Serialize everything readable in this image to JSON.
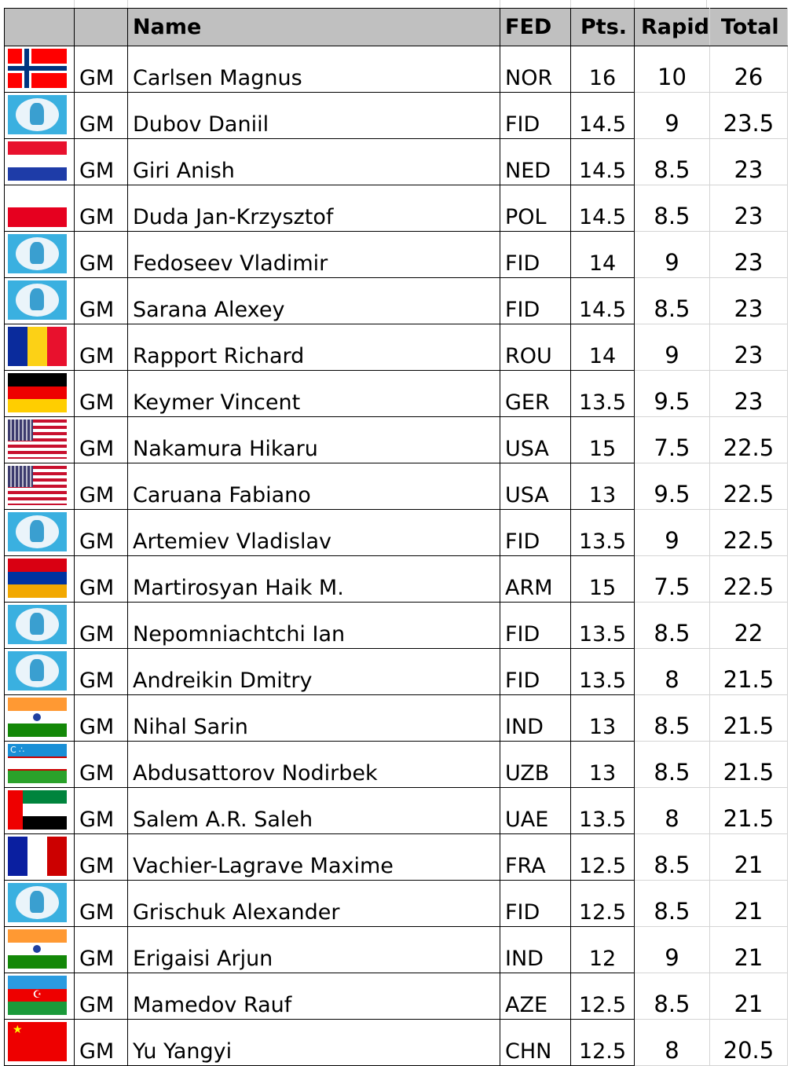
{
  "header": {
    "flag": "",
    "title": "",
    "name": "Name",
    "fed": "FED",
    "pts": "Pts.",
    "rapid": "Rapid",
    "total": "Total"
  },
  "rows": [
    {
      "flag": "NOR",
      "title": "GM",
      "name": "Carlsen Magnus",
      "fed": "NOR",
      "pts": "16",
      "rapid": "10",
      "total": "26"
    },
    {
      "flag": "FID",
      "title": "GM",
      "name": "Dubov Daniil",
      "fed": "FID",
      "pts": "14.5",
      "rapid": "9",
      "total": "23.5"
    },
    {
      "flag": "NED",
      "title": "GM",
      "name": "Giri Anish",
      "fed": "NED",
      "pts": "14.5",
      "rapid": "8.5",
      "total": "23"
    },
    {
      "flag": "POL",
      "title": "GM",
      "name": "Duda Jan-Krzysztof",
      "fed": "POL",
      "pts": "14.5",
      "rapid": "8.5",
      "total": "23"
    },
    {
      "flag": "FID",
      "title": "GM",
      "name": "Fedoseev Vladimir",
      "fed": "FID",
      "pts": "14",
      "rapid": "9",
      "total": "23"
    },
    {
      "flag": "FID",
      "title": "GM",
      "name": "Sarana Alexey",
      "fed": "FID",
      "pts": "14.5",
      "rapid": "8.5",
      "total": "23"
    },
    {
      "flag": "ROU",
      "title": "GM",
      "name": "Rapport Richard",
      "fed": "ROU",
      "pts": "14",
      "rapid": "9",
      "total": "23"
    },
    {
      "flag": "GER",
      "title": "GM",
      "name": "Keymer Vincent",
      "fed": "GER",
      "pts": "13.5",
      "rapid": "9.5",
      "total": "23"
    },
    {
      "flag": "USA",
      "title": "GM",
      "name": "Nakamura Hikaru",
      "fed": "USA",
      "pts": "15",
      "rapid": "7.5",
      "total": "22.5"
    },
    {
      "flag": "USA",
      "title": "GM",
      "name": "Caruana Fabiano",
      "fed": "USA",
      "pts": "13",
      "rapid": "9.5",
      "total": "22.5"
    },
    {
      "flag": "FID",
      "title": "GM",
      "name": "Artemiev Vladislav",
      "fed": "FID",
      "pts": "13.5",
      "rapid": "9",
      "total": "22.5"
    },
    {
      "flag": "ARM",
      "title": "GM",
      "name": "Martirosyan Haik M.",
      "fed": "ARM",
      "pts": "15",
      "rapid": "7.5",
      "total": "22.5"
    },
    {
      "flag": "FID",
      "title": "GM",
      "name": "Nepomniachtchi Ian",
      "fed": "FID",
      "pts": "13.5",
      "rapid": "8.5",
      "total": "22"
    },
    {
      "flag": "FID",
      "title": "GM",
      "name": "Andreikin Dmitry",
      "fed": "FID",
      "pts": "13.5",
      "rapid": "8",
      "total": "21.5"
    },
    {
      "flag": "IND",
      "title": "GM",
      "name": "Nihal Sarin",
      "fed": "IND",
      "pts": "13",
      "rapid": "8.5",
      "total": "21.5"
    },
    {
      "flag": "UZB",
      "title": "GM",
      "name": "Abdusattorov Nodirbek",
      "fed": "UZB",
      "pts": "13",
      "rapid": "8.5",
      "total": "21.5"
    },
    {
      "flag": "UAE",
      "title": "GM",
      "name": "Salem A.R. Saleh",
      "fed": "UAE",
      "pts": "13.5",
      "rapid": "8",
      "total": "21.5"
    },
    {
      "flag": "FRA",
      "title": "GM",
      "name": "Vachier-Lagrave Maxime",
      "fed": "FRA",
      "pts": "12.5",
      "rapid": "8.5",
      "total": "21"
    },
    {
      "flag": "FID",
      "title": "GM",
      "name": "Grischuk Alexander",
      "fed": "FID",
      "pts": "12.5",
      "rapid": "8.5",
      "total": "21"
    },
    {
      "flag": "IND",
      "title": "GM",
      "name": "Erigaisi Arjun",
      "fed": "IND",
      "pts": "12",
      "rapid": "9",
      "total": "21"
    },
    {
      "flag": "AZE",
      "title": "GM",
      "name": "Mamedov Rauf",
      "fed": "AZE",
      "pts": "12.5",
      "rapid": "8.5",
      "total": "21"
    },
    {
      "flag": "CHN",
      "title": "GM",
      "name": "Yu Yangyi",
      "fed": "CHN",
      "pts": "12.5",
      "rapid": "8",
      "total": "20.5"
    }
  ]
}
